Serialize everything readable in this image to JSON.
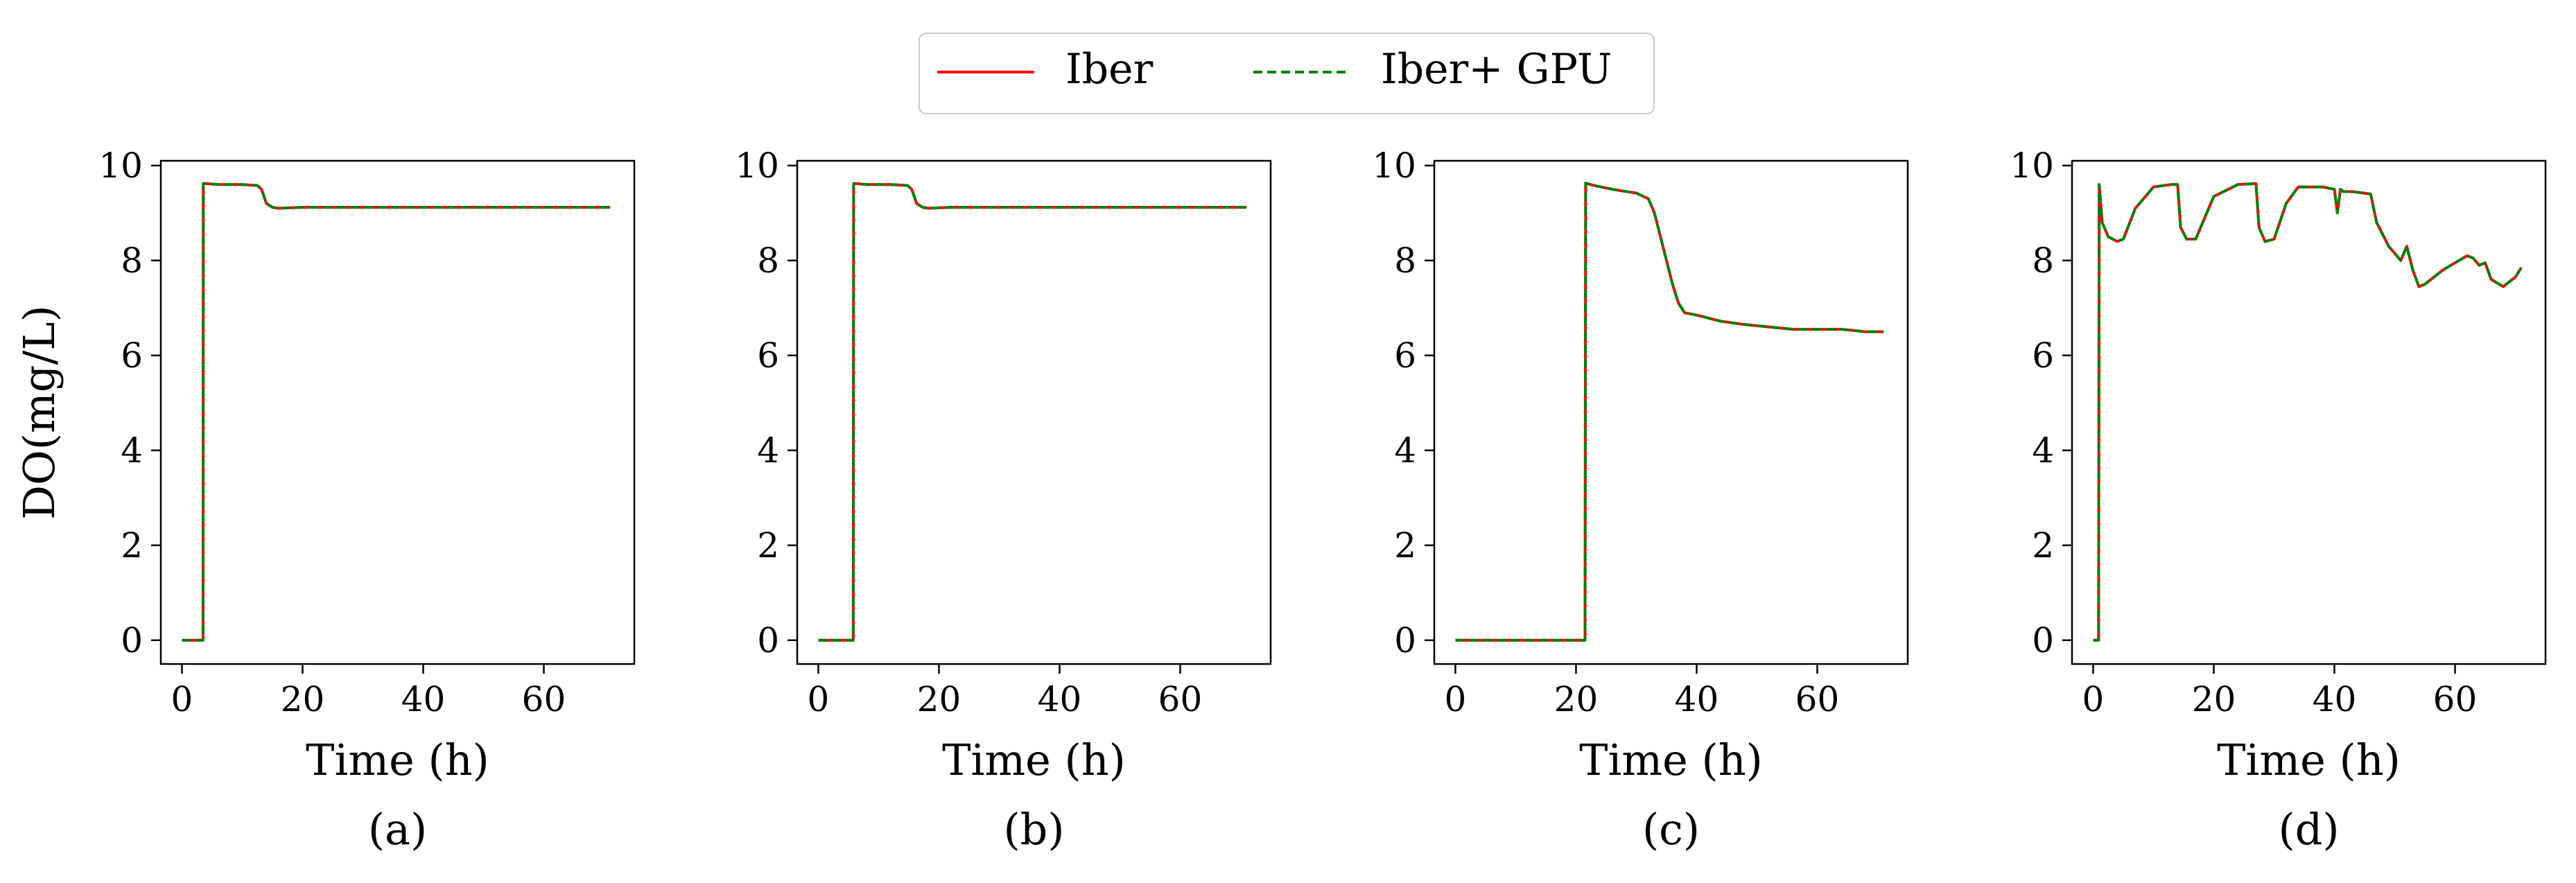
{
  "legend": {
    "entries": [
      {
        "label": "Iber",
        "color": "#ff0000",
        "style": "solid"
      },
      {
        "label": "Iber+ GPU",
        "color": "#008000",
        "style": "dashed"
      }
    ]
  },
  "chart_data": [
    {
      "type": "line",
      "panel_label": "(a)",
      "xlabel": "Time (h)",
      "ylabel": "DO(mg/L)",
      "xlim": [
        -3.5,
        75
      ],
      "ylim": [
        -0.5,
        10.1
      ],
      "xticks": [
        0,
        20,
        40,
        60
      ],
      "yticks": [
        0,
        2,
        4,
        6,
        8,
        10
      ],
      "series": [
        {
          "name": "Iber",
          "x": [
            0,
            3.5,
            3.55,
            4,
            6,
            10,
            12.5,
            13.2,
            14,
            15,
            16,
            20,
            30,
            71
          ],
          "y": [
            0,
            0,
            9.62,
            9.62,
            9.6,
            9.6,
            9.58,
            9.5,
            9.2,
            9.12,
            9.1,
            9.12,
            9.12,
            9.12
          ]
        },
        {
          "name": "Iber+ GPU",
          "x": [
            0,
            3.5,
            3.55,
            4,
            6,
            10,
            12.5,
            13.2,
            14,
            15,
            16,
            20,
            30,
            71
          ],
          "y": [
            0,
            0,
            9.62,
            9.62,
            9.6,
            9.6,
            9.58,
            9.5,
            9.2,
            9.12,
            9.1,
            9.12,
            9.12,
            9.12
          ]
        }
      ]
    },
    {
      "type": "line",
      "panel_label": "(b)",
      "xlabel": "Time (h)",
      "ylabel": "",
      "xlim": [
        -3.5,
        75
      ],
      "ylim": [
        -0.5,
        10.1
      ],
      "xticks": [
        0,
        20,
        40,
        60
      ],
      "yticks": [
        0,
        2,
        4,
        6,
        8,
        10
      ],
      "series": [
        {
          "name": "Iber",
          "x": [
            0,
            5.8,
            5.85,
            6.3,
            8,
            12,
            14.8,
            15.5,
            16.3,
            17.3,
            18.3,
            22,
            30,
            71
          ],
          "y": [
            0,
            0,
            9.62,
            9.62,
            9.6,
            9.6,
            9.58,
            9.5,
            9.2,
            9.12,
            9.1,
            9.12,
            9.12,
            9.12
          ]
        },
        {
          "name": "Iber+ GPU",
          "x": [
            0,
            5.8,
            5.85,
            6.3,
            8,
            12,
            14.8,
            15.5,
            16.3,
            17.3,
            18.3,
            22,
            30,
            71
          ],
          "y": [
            0,
            0,
            9.62,
            9.62,
            9.6,
            9.6,
            9.58,
            9.5,
            9.2,
            9.12,
            9.1,
            9.12,
            9.12,
            9.12
          ]
        }
      ]
    },
    {
      "type": "line",
      "panel_label": "(c)",
      "xlabel": "Time (h)",
      "ylabel": "",
      "xlim": [
        -3.5,
        75
      ],
      "ylim": [
        -0.5,
        10.1
      ],
      "xticks": [
        0,
        20,
        40,
        60
      ],
      "yticks": [
        0,
        2,
        4,
        6,
        8,
        10
      ],
      "series": [
        {
          "name": "Iber",
          "x": [
            0,
            21.5,
            21.6,
            23,
            26,
            30,
            32,
            33,
            34,
            35,
            36,
            37,
            38,
            40,
            44,
            48,
            52,
            56,
            60,
            64,
            68,
            71
          ],
          "y": [
            0,
            0,
            9.63,
            9.58,
            9.5,
            9.42,
            9.3,
            9.0,
            8.5,
            8.0,
            7.5,
            7.1,
            6.9,
            6.85,
            6.72,
            6.65,
            6.6,
            6.55,
            6.55,
            6.55,
            6.5,
            6.5
          ]
        },
        {
          "name": "Iber+ GPU",
          "x": [
            0,
            21.5,
            21.6,
            23,
            26,
            30,
            32,
            33,
            34,
            35,
            36,
            37,
            38,
            40,
            44,
            48,
            52,
            56,
            60,
            64,
            68,
            71
          ],
          "y": [
            0,
            0,
            9.63,
            9.58,
            9.5,
            9.42,
            9.3,
            9.0,
            8.5,
            8.0,
            7.5,
            7.1,
            6.9,
            6.85,
            6.72,
            6.65,
            6.6,
            6.55,
            6.55,
            6.55,
            6.5,
            6.5
          ]
        }
      ]
    },
    {
      "type": "line",
      "panel_label": "(d)",
      "xlabel": "Time (h)",
      "ylabel": "",
      "xlim": [
        -3.5,
        75
      ],
      "ylim": [
        -0.5,
        10.1
      ],
      "xticks": [
        0,
        20,
        40,
        60
      ],
      "yticks": [
        0,
        2,
        4,
        6,
        8,
        10
      ],
      "series": [
        {
          "name": "Iber",
          "x": [
            0,
            0.9,
            1.0,
            1.5,
            2.5,
            4,
            5,
            7,
            10,
            13,
            14,
            14.5,
            15.5,
            17,
            20,
            24,
            27,
            27.5,
            28.5,
            30,
            32,
            34,
            38,
            40,
            40.5,
            41,
            41.5,
            43,
            46,
            47,
            49,
            51,
            52,
            53,
            54,
            55,
            58,
            62,
            63,
            64,
            65,
            66,
            68,
            70,
            71
          ],
          "y": [
            0,
            0,
            9.6,
            8.8,
            8.5,
            8.4,
            8.45,
            9.1,
            9.55,
            9.6,
            9.6,
            8.7,
            8.45,
            8.45,
            9.35,
            9.6,
            9.62,
            8.7,
            8.4,
            8.45,
            9.2,
            9.55,
            9.55,
            9.5,
            9.0,
            9.5,
            9.45,
            9.45,
            9.4,
            8.8,
            8.3,
            8.0,
            8.3,
            7.8,
            7.45,
            7.5,
            7.8,
            8.1,
            8.05,
            7.9,
            7.95,
            7.6,
            7.45,
            7.65,
            7.85
          ]
        },
        {
          "name": "Iber+ GPU",
          "x": [
            0,
            0.9,
            1.0,
            1.5,
            2.5,
            4,
            5,
            7,
            10,
            13,
            14,
            14.5,
            15.5,
            17,
            20,
            24,
            27,
            27.5,
            28.5,
            30,
            32,
            34,
            38,
            40,
            40.5,
            41,
            41.5,
            43,
            46,
            47,
            49,
            51,
            52,
            53,
            54,
            55,
            58,
            62,
            63,
            64,
            65,
            66,
            68,
            70,
            71
          ],
          "y": [
            0,
            0,
            9.6,
            8.8,
            8.5,
            8.4,
            8.45,
            9.1,
            9.55,
            9.6,
            9.6,
            8.7,
            8.45,
            8.45,
            9.35,
            9.6,
            9.62,
            8.7,
            8.4,
            8.45,
            9.2,
            9.55,
            9.55,
            9.5,
            9.0,
            9.5,
            9.45,
            9.45,
            9.4,
            8.8,
            8.3,
            8.0,
            8.3,
            7.8,
            7.45,
            7.5,
            7.8,
            8.1,
            8.05,
            7.9,
            7.95,
            7.6,
            7.45,
            7.65,
            7.85
          ]
        }
      ]
    }
  ]
}
